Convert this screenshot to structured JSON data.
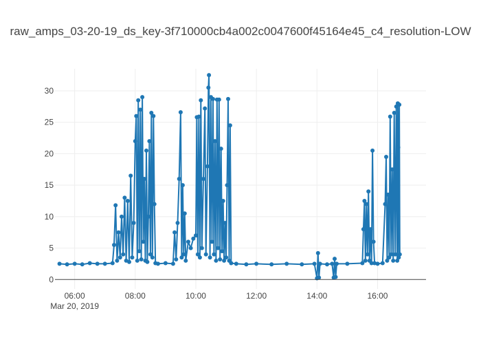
{
  "chart_data": {
    "type": "line",
    "title": "raw_amps_03-20-19_ds_key-3f710000cb4a002c0047600f45164e45_c4_resolution-LOW",
    "xlabel": "",
    "ylabel": "",
    "x_range": [
      "2019-03-20 05:21",
      "2019-03-20 17:36"
    ],
    "ylim": [
      -1.5,
      33.5
    ],
    "x_ticks": [
      "06:00",
      "08:00",
      "10:00",
      "12:00",
      "14:00",
      "16:00"
    ],
    "x_date_label": "Mar 20, 2019",
    "y_ticks": [
      0,
      5,
      10,
      15,
      20,
      25,
      30
    ],
    "grid": true,
    "legend": "none",
    "series": [
      {
        "color": "#1f77b4",
        "mode": "lines+markers",
        "points": [
          [
            "05:30",
            2.5
          ],
          [
            "05:45",
            2.4
          ],
          [
            "06:00",
            2.5
          ],
          [
            "06:15",
            2.4
          ],
          [
            "06:30",
            2.6
          ],
          [
            "06:45",
            2.5
          ],
          [
            "07:00",
            2.5
          ],
          [
            "07:15",
            2.6
          ],
          [
            "07:18",
            5.5
          ],
          [
            "07:21",
            11.8
          ],
          [
            "07:24",
            3.0
          ],
          [
            "07:27",
            7.5
          ],
          [
            "07:30",
            3.5
          ],
          [
            "07:33",
            10.0
          ],
          [
            "07:36",
            4.0
          ],
          [
            "07:39",
            13.0
          ],
          [
            "07:42",
            3.0
          ],
          [
            "07:45",
            12.5
          ],
          [
            "07:48",
            2.8
          ],
          [
            "07:51",
            16.5
          ],
          [
            "07:54",
            3.5
          ],
          [
            "07:57",
            9.0
          ],
          [
            "08:00",
            22.0
          ],
          [
            "08:02",
            26.0
          ],
          [
            "08:04",
            3.0
          ],
          [
            "08:06",
            28.5
          ],
          [
            "08:08",
            4.5
          ],
          [
            "08:10",
            27.0
          ],
          [
            "08:12",
            3.2
          ],
          [
            "08:14",
            29.0
          ],
          [
            "08:16",
            6.0
          ],
          [
            "08:18",
            16.0
          ],
          [
            "08:20",
            3.0
          ],
          [
            "08:22",
            20.5
          ],
          [
            "08:24",
            2.8
          ],
          [
            "08:26",
            10.0
          ],
          [
            "08:28",
            22.0
          ],
          [
            "08:30",
            4.0
          ],
          [
            "08:32",
            26.5
          ],
          [
            "08:34",
            3.5
          ],
          [
            "08:36",
            26.0
          ],
          [
            "08:38",
            12.0
          ],
          [
            "08:40",
            2.6
          ],
          [
            "08:45",
            2.5
          ],
          [
            "09:00",
            2.6
          ],
          [
            "09:15",
            2.5
          ],
          [
            "09:18",
            7.5
          ],
          [
            "09:21",
            3.2
          ],
          [
            "09:24",
            9.0
          ],
          [
            "09:27",
            16.0
          ],
          [
            "09:30",
            26.6
          ],
          [
            "09:32",
            3.5
          ],
          [
            "09:34",
            15.0
          ],
          [
            "09:36",
            4.0
          ],
          [
            "09:38",
            10.5
          ],
          [
            "09:40",
            3.0
          ],
          [
            "09:45",
            6.0
          ],
          [
            "09:50",
            5.0
          ],
          [
            "09:55",
            6.5
          ],
          [
            "10:00",
            7.0
          ],
          [
            "10:02",
            25.8
          ],
          [
            "10:04",
            4.0
          ],
          [
            "10:06",
            25.9
          ],
          [
            "10:08",
            3.5
          ],
          [
            "10:10",
            28.5
          ],
          [
            "10:12",
            5.0
          ],
          [
            "10:15",
            16.0
          ],
          [
            "10:18",
            27.2
          ],
          [
            "10:20",
            4.0
          ],
          [
            "10:23",
            18.0
          ],
          [
            "10:25",
            30.5
          ],
          [
            "10:26",
            32.5
          ],
          [
            "10:28",
            3.5
          ],
          [
            "10:30",
            29.0
          ],
          [
            "10:32",
            6.0
          ],
          [
            "10:34",
            28.7
          ],
          [
            "10:36",
            4.0
          ],
          [
            "10:38",
            22.0
          ],
          [
            "10:40",
            3.0
          ],
          [
            "10:42",
            28.6
          ],
          [
            "10:44",
            5.0
          ],
          [
            "10:46",
            28.6
          ],
          [
            "10:48",
            3.2
          ],
          [
            "10:50",
            20.8
          ],
          [
            "10:52",
            4.5
          ],
          [
            "10:54",
            12.5
          ],
          [
            "10:56",
            3.0
          ],
          [
            "10:58",
            9.0
          ],
          [
            "11:00",
            3.5
          ],
          [
            "11:02",
            15.0
          ],
          [
            "11:04",
            28.7
          ],
          [
            "11:06",
            3.0
          ],
          [
            "11:08",
            24.5
          ],
          [
            "11:10",
            2.6
          ],
          [
            "11:20",
            2.5
          ],
          [
            "11:40",
            2.4
          ],
          [
            "12:00",
            2.5
          ],
          [
            "12:30",
            2.4
          ],
          [
            "13:00",
            2.5
          ],
          [
            "13:30",
            2.4
          ],
          [
            "13:55",
            2.5
          ],
          [
            "14:00",
            0.2
          ],
          [
            "14:02",
            4.2
          ],
          [
            "14:04",
            0.3
          ],
          [
            "14:06",
            2.5
          ],
          [
            "14:20",
            2.4
          ],
          [
            "14:30",
            2.5
          ],
          [
            "14:33",
            0.3
          ],
          [
            "14:35",
            3.3
          ],
          [
            "14:37",
            0.4
          ],
          [
            "14:39",
            2.5
          ],
          [
            "15:00",
            2.5
          ],
          [
            "15:30",
            2.6
          ],
          [
            "15:32",
            8.0
          ],
          [
            "15:34",
            12.5
          ],
          [
            "15:36",
            3.0
          ],
          [
            "15:38",
            12.0
          ],
          [
            "15:40",
            4.0
          ],
          [
            "15:42",
            14.0
          ],
          [
            "15:44",
            3.0
          ],
          [
            "15:46",
            8.0
          ],
          [
            "15:48",
            2.6
          ],
          [
            "15:50",
            20.5
          ],
          [
            "15:52",
            6.0
          ],
          [
            "15:54",
            2.6
          ],
          [
            "16:00",
            2.5
          ],
          [
            "16:10",
            2.6
          ],
          [
            "16:15",
            12.0
          ],
          [
            "16:17",
            19.5
          ],
          [
            "16:19",
            3.0
          ],
          [
            "16:21",
            13.5
          ],
          [
            "16:23",
            3.5
          ],
          [
            "16:25",
            25.9
          ],
          [
            "16:27",
            4.0
          ],
          [
            "16:29",
            17.5
          ],
          [
            "16:31",
            3.0
          ],
          [
            "16:33",
            26.5
          ],
          [
            "16:35",
            4.0
          ],
          [
            "16:37",
            27.5
          ],
          [
            "16:39",
            3.0
          ],
          [
            "16:40",
            28.0
          ],
          [
            "16:41",
            21.0
          ],
          [
            "16:42",
            3.5
          ],
          [
            "16:43",
            27.8
          ],
          [
            "16:44",
            4.0
          ]
        ]
      }
    ]
  }
}
